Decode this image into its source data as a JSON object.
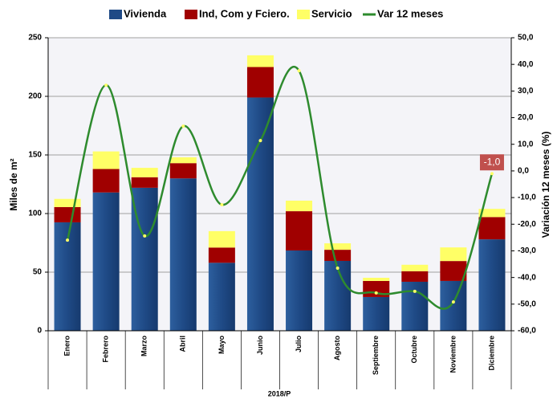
{
  "chart_data": {
    "type": "bar",
    "stacked": true,
    "x_label": "2018/P",
    "y_label": "Miles de m²",
    "y2_label": "Variación 12 meses (%)",
    "categories": [
      "Enero",
      "Febrero",
      "Marzo",
      "Abril",
      "Mayo",
      "Junio",
      "Julio",
      "Agosto",
      "Septiembre",
      "Octubre",
      "Noviembre",
      "Diciembre"
    ],
    "series": [
      {
        "name": "Vivienda",
        "color": "#1f4a86",
        "values": [
          92.5,
          118,
          122,
          130,
          58,
          199,
          68.5,
          59.6,
          28.8,
          41.8,
          42.5,
          78
        ]
      },
      {
        "name": "Ind, Com y Fciero.",
        "color": "#a00000",
        "values": [
          13,
          20,
          9,
          13,
          13,
          26,
          33.5,
          9.5,
          13.7,
          9,
          17,
          19
        ]
      },
      {
        "name": "Servicio",
        "color": "#ffff66",
        "values": [
          7,
          15,
          8,
          5,
          14,
          10,
          9,
          5.5,
          2.7,
          5.5,
          11.6,
          7
        ]
      },
      {
        "name": "Var 12 meses",
        "type": "line",
        "axis": "y2",
        "color": "#2e8b2e",
        "values": [
          -26,
          32.2,
          -24.4,
          16.8,
          -12.7,
          11.4,
          37.6,
          -36.5,
          -45.8,
          -45.2,
          -49.2,
          -1.0
        ],
        "value_labels": [
          null,
          null,
          null,
          null,
          null,
          null,
          null,
          null,
          null,
          null,
          null,
          "-1,0"
        ]
      }
    ],
    "ylim": [
      0,
      250
    ],
    "yticks": [
      0,
      50,
      100,
      150,
      200,
      250
    ],
    "y2lim": [
      -60,
      50
    ],
    "y2ticks": [
      {
        "value": -60,
        "label": "-60,0"
      },
      {
        "value": -50,
        "label": "-50,0"
      },
      {
        "value": -40,
        "label": "-40,0"
      },
      {
        "value": -30,
        "label": "-30,0"
      },
      {
        "value": -20,
        "label": "-20,0"
      },
      {
        "value": -10,
        "label": "-10,0"
      },
      {
        "value": 0,
        "label": "0,0"
      },
      {
        "value": 10,
        "label": "10,0"
      },
      {
        "value": 20,
        "label": "20,0"
      },
      {
        "value": 30,
        "label": "30,0"
      },
      {
        "value": 40,
        "label": "40,0"
      },
      {
        "value": 50,
        "label": "50,0"
      }
    ],
    "grid": true,
    "legend": "top"
  }
}
